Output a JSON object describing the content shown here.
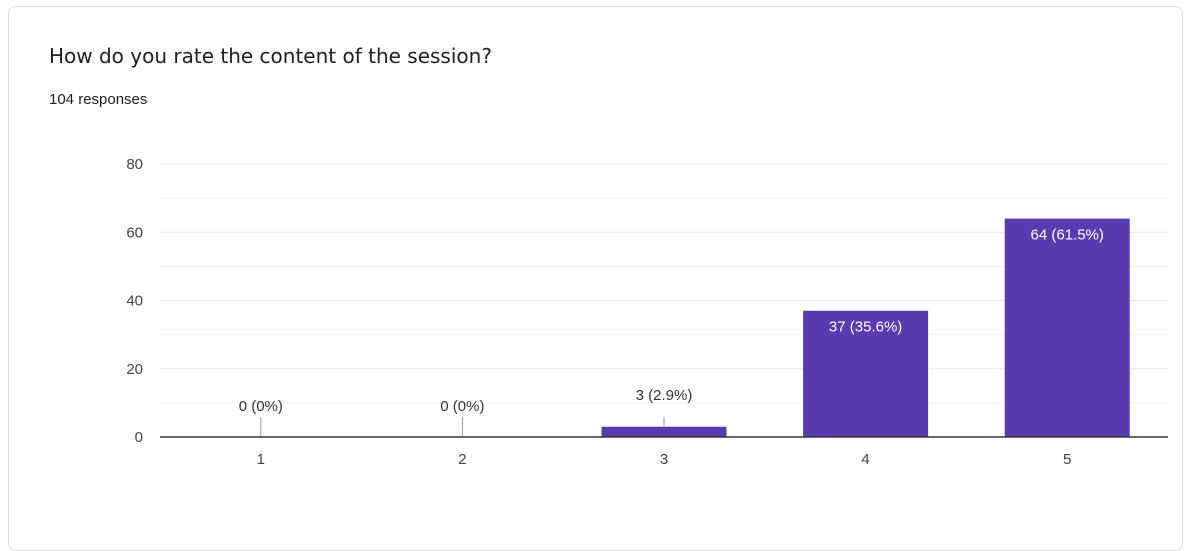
{
  "question": {
    "title": "How do you rate the content of the session?",
    "responses": "104 responses"
  },
  "colors": {
    "bar": "#5b3ab1",
    "grid": "#e8e8e8",
    "axis": "#333333",
    "label_inside": "#ffffff",
    "label_outside": "#333333"
  },
  "chart_data": {
    "type": "bar",
    "title": "",
    "xlabel": "",
    "ylabel": "",
    "categories": [
      "1",
      "2",
      "3",
      "4",
      "5"
    ],
    "values": [
      0,
      0,
      3,
      37,
      64
    ],
    "labels": [
      "0 (0%)",
      "0 (0%)",
      "3 (2.9%)",
      "37 (35.6%)",
      "64 (61.5%)"
    ],
    "ylim": [
      0,
      80
    ],
    "yticks": [
      0,
      20,
      40,
      60,
      80
    ],
    "grid": true,
    "legend": "none"
  }
}
